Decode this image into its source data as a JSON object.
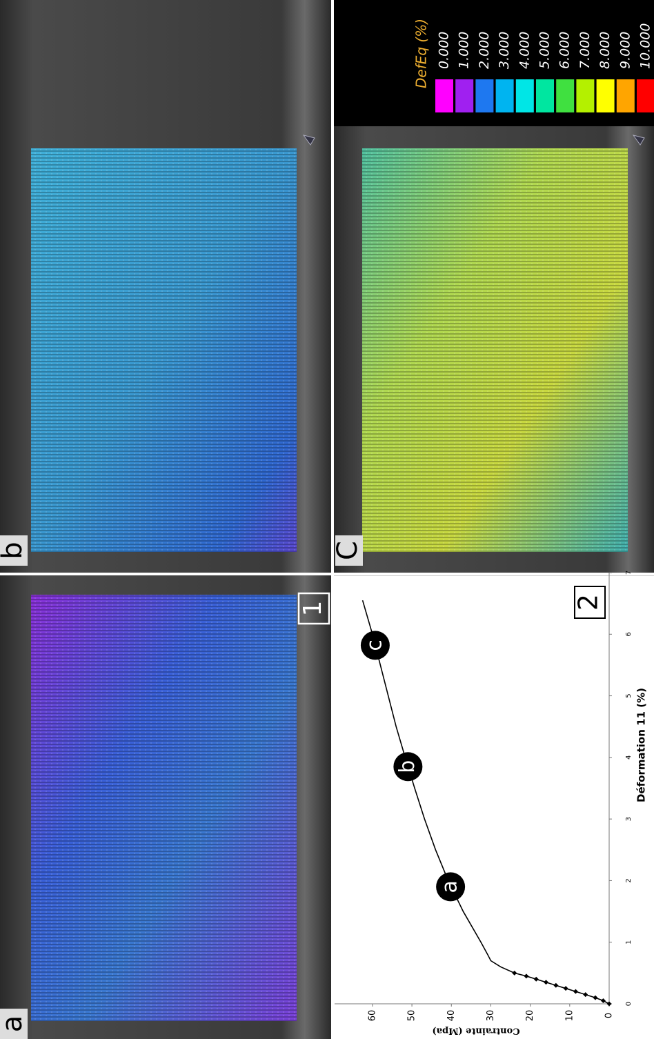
{
  "figure": {
    "panels": [
      {
        "label": "a",
        "marker": "1"
      },
      {
        "label": "b"
      },
      {
        "label": "C"
      }
    ],
    "legend": {
      "title": "DefEq (%)",
      "entries": [
        {
          "label": "0.000",
          "color": "#ff00ff"
        },
        {
          "label": "1.000",
          "color": "#a020f0"
        },
        {
          "label": "2.000",
          "color": "#1e78f0"
        },
        {
          "label": "3.000",
          "color": "#00b4f0"
        },
        {
          "label": "4.000",
          "color": "#00e6e6"
        },
        {
          "label": "5.000",
          "color": "#00e6a0"
        },
        {
          "label": "6.000",
          "color": "#40e040"
        },
        {
          "label": "7.000",
          "color": "#b4f000"
        },
        {
          "label": "8.000",
          "color": "#ffff00"
        },
        {
          "label": "9.000",
          "color": "#ffa500"
        },
        {
          "label": "10.000",
          "color": "#ff0000"
        }
      ]
    }
  },
  "chart_data": {
    "type": "line",
    "xlabel": "Déformation 11 (%)",
    "ylabel": "Contrainte (Mpa)",
    "panel_label": "2",
    "color": "#000000",
    "xlim": [
      0,
      7
    ],
    "xticks": [
      0,
      1,
      2,
      3,
      4,
      5,
      6,
      7
    ],
    "ylim": [
      0,
      69.6
    ],
    "yticks": [
      0,
      10,
      20,
      30,
      40,
      50,
      60
    ],
    "series": [
      {
        "marker": "diamond",
        "x": [
          0,
          0.05,
          0.1,
          0.15,
          0.2,
          0.25,
          0.3,
          0.35,
          0.4,
          0.45,
          0.5
        ],
        "values": [
          0,
          1.5,
          3.5,
          6,
          8.5,
          11,
          13.5,
          16,
          18.5,
          21,
          24
        ]
      },
      {
        "marker": "none",
        "x": [
          0.5,
          0.6,
          0.7,
          0.8,
          1,
          1.5,
          2,
          2.5,
          3,
          3.5,
          4,
          4.5,
          5,
          5.5,
          6,
          6.55
        ],
        "values": [
          24,
          27.5,
          30,
          30.8,
          32.5,
          37,
          40.8,
          44,
          46.8,
          49.3,
          51.7,
          54,
          56,
          58,
          60,
          62.5
        ]
      }
    ],
    "annotations": [
      {
        "text": "a",
        "x": 1.9,
        "y": 40.2
      },
      {
        "text": "b",
        "x": 3.85,
        "y": 51
      },
      {
        "text": "c",
        "x": 5.82,
        "y": 59.3
      }
    ]
  }
}
